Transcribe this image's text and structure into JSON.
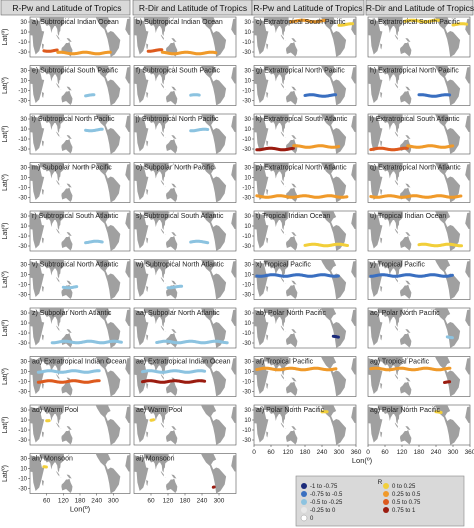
{
  "group_titles": [
    "R-Pw and Latitude of Tropics",
    "R-Dir and Latitude of Tropics",
    "R-Pw and Latitude of Tropics",
    "R-Dir and Latitude of Tropics"
  ],
  "axes": {
    "ylabel": "Lat(º)",
    "xlabel": "Lon(º)",
    "yticks": [
      "30",
      "10",
      "-10",
      "-30"
    ],
    "xticks": [
      "0",
      "60",
      "120",
      "180",
      "240",
      "300",
      "360"
    ],
    "xticks_left_bottom": [
      "60",
      "120",
      "180",
      "240",
      "300"
    ],
    "xticks_left_bottom2": [
      "60",
      "120",
      "180",
      "240",
      "300"
    ]
  },
  "colors": {
    "land": "#a0a0a0",
    "ocean": "#ffffff",
    "bin_neg_1": "#1b2a7a",
    "bin_neg_2": "#3a6fc0",
    "bin_neg_3": "#8cc3e0",
    "bin_zero": "#e8e8e8",
    "bin_pos_1": "#f2cf3a",
    "bin_pos_2": "#f09a2a",
    "bin_pos_3": "#dd5a1e",
    "bin_pos_4": "#9b1c10"
  },
  "chart_data": {
    "type": "map-panels",
    "xlim": [
      0,
      360
    ],
    "ylim": [
      -40,
      40
    ],
    "legend": {
      "title": "R",
      "entries": [
        {
          "label": "-1 to -0.75",
          "color": "#1b2a7a"
        },
        {
          "label": "-0.75 to -0.5",
          "color": "#3a6fc0"
        },
        {
          "label": "-0.5 to -0.25",
          "color": "#8cc3e0"
        },
        {
          "label": "-0.25 to 0",
          "color": "#e8e8e8"
        },
        {
          "label": "0",
          "color": "#ffffff"
        },
        {
          "label": "0 to 0.25",
          "color": "#f2cf3a"
        },
        {
          "label": "0.25 to 0.5",
          "color": "#f09a2a"
        },
        {
          "label": "0.5 to 0.75",
          "color": "#dd5a1e"
        },
        {
          "label": "0.75 to 1",
          "color": "#9b1c10"
        }
      ]
    },
    "panels": [
      {
        "label": "a) Subtropical Indian Ocean",
        "tracks": [
          {
            "lat": -27,
            "lon": [
              50,
              100
            ],
            "r": 0.6
          },
          {
            "lat": -32,
            "lon": [
              100,
              290
            ],
            "r": 0.5
          }
        ]
      },
      {
        "label": "b) Subtropical Indian Ocean",
        "tracks": [
          {
            "lat": -27,
            "lon": [
              50,
              100
            ],
            "r": 0.55
          },
          {
            "lat": -32,
            "lon": [
              100,
              290
            ],
            "r": 0.45
          }
        ]
      },
      {
        "label": "c) Extratropical South Pacific",
        "tracks": [
          {
            "lat": 32,
            "lon": [
              130,
              250
            ],
            "r": 0.3
          },
          {
            "lat": 25,
            "lon": [
              300,
              350
            ],
            "r": 0.2
          }
        ]
      },
      {
        "label": "d) Extratropical South Pacific",
        "tracks": [
          {
            "lat": 32,
            "lon": [
              130,
              250
            ],
            "r": 0.25
          },
          {
            "lat": 25,
            "lon": [
              300,
              350
            ],
            "r": 0.2
          }
        ]
      },
      {
        "label": "e) Subtropical South Pacific",
        "tracks": [
          {
            "lat": -20,
            "lon": [
              200,
              230
            ],
            "r": -0.3
          }
        ]
      },
      {
        "label": "f)  Subtropical South Pacific",
        "tracks": [
          {
            "lat": -20,
            "lon": [
              200,
              230
            ],
            "r": -0.3
          }
        ]
      },
      {
        "label": "g) Extratropical North Pacific",
        "tracks": [
          {
            "lat": -20,
            "lon": [
              180,
              290
            ],
            "r": -0.55
          }
        ]
      },
      {
        "label": "h) Extratropical North Pacific",
        "tracks": [
          {
            "lat": -20,
            "lon": [
              180,
              290
            ],
            "r": -0.5
          }
        ]
      },
      {
        "label": "i) Subtropical North Pacific",
        "tracks": [
          {
            "lat": 8,
            "lon": [
              200,
              260
            ],
            "r": -0.3
          }
        ]
      },
      {
        "label": "j) Subtropical North Pacific",
        "tracks": [
          {
            "lat": 8,
            "lon": [
              200,
              260
            ],
            "r": -0.3
          }
        ]
      },
      {
        "label": "k) Extratropical South Atlantic",
        "tracks": [
          {
            "lat": -30,
            "lon": [
              10,
              140
            ],
            "r": 0.85
          },
          {
            "lat": -25,
            "lon": [
              140,
              300
            ],
            "r": 0.35
          }
        ]
      },
      {
        "label": "l) Extratropical South Atlantic",
        "tracks": [
          {
            "lat": -30,
            "lon": [
              10,
              140
            ],
            "r": 0.7
          },
          {
            "lat": -25,
            "lon": [
              140,
              300
            ],
            "r": 0.3
          }
        ]
      },
      {
        "label": "m) Subpolar North Pacific",
        "tracks": [
          {
            "lat": 30,
            "lon": [
              180,
              220
            ],
            "r": -0.2
          }
        ]
      },
      {
        "label": "o) Subpolar North Pacific",
        "tracks": [
          {
            "lat": 30,
            "lon": [
              180,
              220
            ],
            "r": -0.2
          }
        ]
      },
      {
        "label": "p) Extratropical North Atlantic",
        "tracks": [
          {
            "lat": -28,
            "lon": [
              10,
              330
            ],
            "r": 0.4
          }
        ]
      },
      {
        "label": "q) Extratropical North Atlantic",
        "tracks": [
          {
            "lat": -28,
            "lon": [
              10,
              330
            ],
            "r": 0.35
          }
        ]
      },
      {
        "label": "r) Subtropical South Atlantic",
        "tracks": [
          {
            "lat": -22,
            "lon": [
              200,
              260
            ],
            "r": -0.35
          }
        ]
      },
      {
        "label": "s) Subtropical South Atlantic",
        "tracks": [
          {
            "lat": -22,
            "lon": [
              200,
              260
            ],
            "r": -0.35
          }
        ]
      },
      {
        "label": "t) Tropical Indian Ocean",
        "tracks": [
          {
            "lat": -28,
            "lon": [
              180,
              330
            ],
            "r": 0.2
          }
        ]
      },
      {
        "label": "u)  Tropical Indian Ocean",
        "tracks": [
          {
            "lat": -28,
            "lon": [
              180,
              330
            ],
            "r": 0.2
          }
        ]
      },
      {
        "label": "v) Subtropical North Atlantic",
        "tracks": [
          {
            "lat": -15,
            "lon": [
              120,
              170
            ],
            "r": -0.3
          }
        ]
      },
      {
        "label": "w) Subtropical North Atlantic",
        "tracks": [
          {
            "lat": -15,
            "lon": [
              120,
              170
            ],
            "r": -0.3
          }
        ]
      },
      {
        "label": "x) Tropical Pacific",
        "tracks": [
          {
            "lat": 8,
            "lon": [
              10,
              300
            ],
            "r": -0.55
          }
        ]
      },
      {
        "label": "y) Tropical Pacific",
        "tracks": [
          {
            "lat": 8,
            "lon": [
              10,
              300
            ],
            "r": -0.5
          }
        ]
      },
      {
        "label": "z) Subpolar North Atlantic",
        "tracks": [
          {
            "lat": -28,
            "lon": [
              80,
              330
            ],
            "r": -0.4
          }
        ]
      },
      {
        "label": "aa) Subpolar North Atlantic",
        "tracks": [
          {
            "lat": -28,
            "lon": [
              80,
              330
            ],
            "r": -0.35
          }
        ]
      },
      {
        "label": "ab) Polar North Pacific",
        "tracks": [
          {
            "lat": -18,
            "lon": [
              280,
              300
            ],
            "r": -0.9
          }
        ]
      },
      {
        "label": "ac) Polar North Pacific",
        "tracks": [
          {
            "lat": -18,
            "lon": [
              280,
              300
            ],
            "r": -0.3
          }
        ]
      },
      {
        "label": "ad) Extratropical Indian Ocean",
        "tracks": [
          {
            "lat": -10,
            "lon": [
              30,
              250
            ],
            "r": 0.7
          },
          {
            "lat": 10,
            "lon": [
              30,
              250
            ],
            "r": -0.3
          }
        ]
      },
      {
        "label": "ae) Extratropical Indian Ocean",
        "tracks": [
          {
            "lat": -10,
            "lon": [
              30,
              250
            ],
            "r": 0.8
          },
          {
            "lat": 10,
            "lon": [
              30,
              250
            ],
            "r": -0.3
          }
        ]
      },
      {
        "label": "af)  Tropical Pacific",
        "tracks": [
          {
            "lat": 15,
            "lon": [
              10,
              290
            ],
            "r": 0.3
          }
        ]
      },
      {
        "label": "ag) Tropical Pacific",
        "tracks": [
          {
            "lat": 15,
            "lon": [
              10,
              290
            ],
            "r": 0.35
          },
          {
            "lat": -12,
            "lon": [
              270,
              290
            ],
            "r": 0.9
          }
        ]
      },
      {
        "label": "ad) Warm Pool",
        "tracks": [
          {
            "lat": 10,
            "lon": [
              60,
              70
            ],
            "r": 0.2
          }
        ]
      },
      {
        "label": "ae) Warm Pool",
        "tracks": [
          {
            "lat": 10,
            "lon": [
              60,
              70
            ],
            "r": 0.2
          }
        ]
      },
      {
        "label": "af) Polar North Pacific",
        "tracks": [
          {
            "lat": 25,
            "lon": [
              240,
              260
            ],
            "r": 0.2
          }
        ]
      },
      {
        "label": "ag) Polar North Pacific",
        "tracks": [
          {
            "lat": 25,
            "lon": [
              240,
              260
            ],
            "r": 0.2
          }
        ]
      },
      {
        "label": "ah) Monsoon",
        "tracks": [
          {
            "lat": 12,
            "lon": [
              50,
              60
            ],
            "r": 0.2
          }
        ]
      },
      {
        "label": "ai)  Monsoon",
        "tracks": [
          {
            "lat": -28,
            "lon": [
              280,
              284
            ],
            "r": 0.9
          }
        ]
      }
    ]
  }
}
